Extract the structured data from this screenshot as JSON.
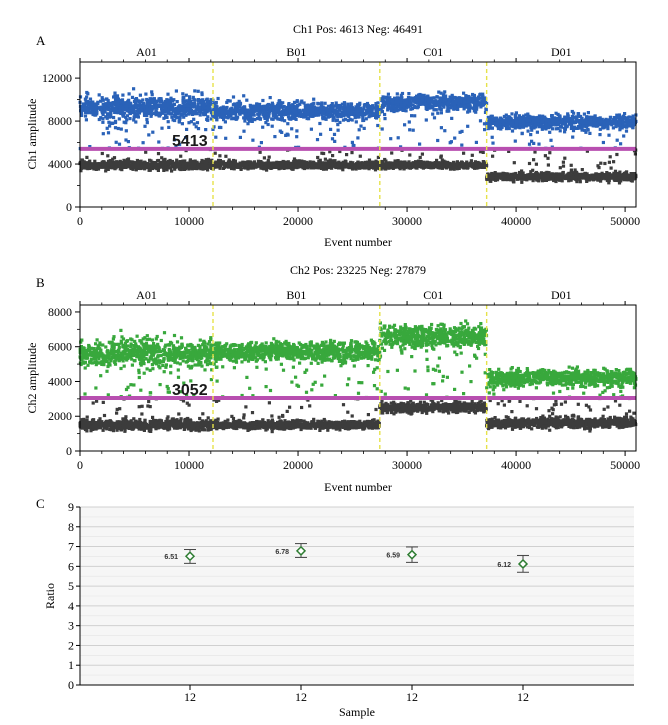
{
  "panels": {
    "a": {
      "letter": "A",
      "title": "Ch1 Pos: 4613 Neg: 46491",
      "threshold_label": "5413"
    },
    "b": {
      "letter": "B",
      "title": "Ch2 Pos: 23225 Neg: 27879",
      "threshold_label": "3052"
    },
    "c": {
      "letter": "C"
    }
  },
  "chart_data": [
    {
      "type": "scatter",
      "title": "Ch1 Pos: 4613 Neg: 46491",
      "xlabel": "Event number",
      "ylabel": "Ch1 amplitude",
      "xlim": [
        0,
        51000
      ],
      "ylim": [
        0,
        13500
      ],
      "xticks": [
        0,
        10000,
        20000,
        30000,
        40000,
        50000
      ],
      "yticks": [
        0,
        4000,
        8000,
        12000
      ],
      "grid": false,
      "threshold": 5413,
      "threshold_color": "#b84fb0",
      "well_dividers": [
        12200,
        27500,
        37300
      ],
      "wells": [
        {
          "name": "A01",
          "x_range": [
            0,
            12200
          ],
          "positive_mean": 9200,
          "positive_spread": 1200,
          "negative_mean": 3900,
          "negative_spread": 450
        },
        {
          "name": "B01",
          "x_range": [
            12200,
            27500
          ],
          "positive_mean": 8900,
          "positive_spread": 900,
          "negative_mean": 3900,
          "negative_spread": 350
        },
        {
          "name": "C01",
          "x_range": [
            27500,
            37300
          ],
          "positive_mean": 9700,
          "positive_spread": 800,
          "negative_mean": 3900,
          "negative_spread": 350
        },
        {
          "name": "D01",
          "x_range": [
            37300,
            51000
          ],
          "positive_mean": 7900,
          "positive_spread": 700,
          "negative_mean": 2800,
          "negative_spread": 400
        }
      ],
      "positive_color": "#2a62b8",
      "negative_color": "#3c3c3c"
    },
    {
      "type": "scatter",
      "title": "Ch2 Pos: 23225 Neg: 27879",
      "xlabel": "Event number",
      "ylabel": "Ch2 amplitude",
      "xlim": [
        0,
        51000
      ],
      "ylim": [
        0,
        8400
      ],
      "xticks": [
        0,
        10000,
        20000,
        30000,
        40000,
        50000
      ],
      "yticks": [
        0,
        2000,
        4000,
        6000,
        8000
      ],
      "grid": false,
      "threshold": 3052,
      "threshold_color": "#b84fb0",
      "well_dividers": [
        12200,
        27500,
        37300
      ],
      "wells": [
        {
          "name": "A01",
          "x_range": [
            0,
            12200
          ],
          "positive_mean": 5600,
          "positive_spread": 900,
          "negative_mean": 1500,
          "negative_spread": 300
        },
        {
          "name": "B01",
          "x_range": [
            12200,
            27500
          ],
          "positive_mean": 5700,
          "positive_spread": 600,
          "negative_mean": 1500,
          "negative_spread": 250
        },
        {
          "name": "C01",
          "x_range": [
            27500,
            37300
          ],
          "positive_mean": 6600,
          "positive_spread": 700,
          "negative_mean": 2500,
          "negative_spread": 300
        },
        {
          "name": "D01",
          "x_range": [
            37300,
            51000
          ],
          "positive_mean": 4200,
          "positive_spread": 500,
          "negative_mean": 1600,
          "negative_spread": 300
        }
      ],
      "positive_color": "#38a83c",
      "negative_color": "#3c3c3c"
    },
    {
      "type": "scatter",
      "xlabel": "Sample",
      "ylabel": "Ratio",
      "ylim": [
        0,
        9
      ],
      "yticks": [
        0,
        1,
        2,
        3,
        4,
        5,
        6,
        7,
        8,
        9
      ],
      "grid": true,
      "categories": [
        "12",
        "12",
        "12",
        "12"
      ],
      "values": [
        6.51,
        6.78,
        6.59,
        6.12
      ],
      "value_labels": [
        "6.51",
        "6.78",
        "6.59",
        "6.12"
      ],
      "error_low": [
        6.15,
        6.45,
        6.2,
        5.7
      ],
      "error_high": [
        6.85,
        7.15,
        6.98,
        6.55
      ],
      "marker_color": "#2e7d32"
    }
  ]
}
